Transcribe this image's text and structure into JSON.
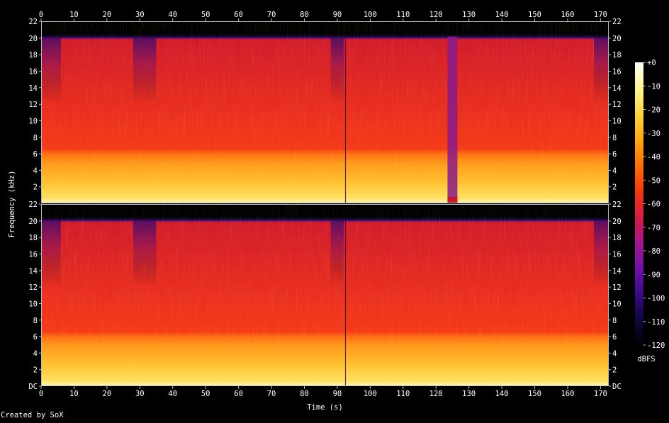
{
  "chart_data": {
    "type": "heatmap",
    "title": "",
    "xlabel": "Time (s)",
    "ylabel": "Frequency (kHz)",
    "x_ticks": [
      "0",
      "10",
      "20",
      "30",
      "40",
      "50",
      "60",
      "70",
      "80",
      "90",
      "100",
      "110",
      "120",
      "130",
      "140",
      "150",
      "160",
      "170"
    ],
    "x_range": [
      0,
      172.5
    ],
    "channels": [
      {
        "name": "",
        "y_ticks": [
          "22",
          "20",
          "18",
          "16",
          "14",
          "12",
          "10",
          "8",
          "6",
          "4",
          "2"
        ],
        "y_range": [
          0,
          22.05
        ]
      },
      {
        "name": "",
        "y_ticks": [
          "22",
          "20",
          "18",
          "16",
          "14",
          "12",
          "10",
          "8",
          "6",
          "4",
          "2",
          "DC"
        ],
        "y_range": [
          0,
          22.05
        ]
      }
    ],
    "colorbar": {
      "label": "dBFS",
      "ticks": [
        "+0",
        "-10",
        "-20",
        "-30",
        "-40",
        "-50",
        "-60",
        "-70",
        "-80",
        "-90",
        "-100",
        "-110",
        "-120"
      ],
      "range": [
        -120,
        0
      ],
      "colors": [
        "#000000",
        "#10063d",
        "#3a0a86",
        "#6f10a8",
        "#a4158f",
        "#d41c45",
        "#f2360f",
        "#ff6a08",
        "#ffa410",
        "#ffd23a",
        "#fff38c",
        "#ffffff"
      ]
    },
    "features": {
      "spectral_cutoff_khz": 20.2,
      "loud_band_khz": [
        0,
        6.2
      ],
      "silence_dropout_s": [
        123.5,
        126.5
      ],
      "transient_s": 92.5,
      "quiet_regions_s": [
        [
          0,
          6
        ],
        [
          28,
          35
        ],
        [
          88,
          92
        ],
        [
          168,
          172.5
        ]
      ]
    }
  },
  "footer": {
    "credit": "Created by SoX"
  }
}
